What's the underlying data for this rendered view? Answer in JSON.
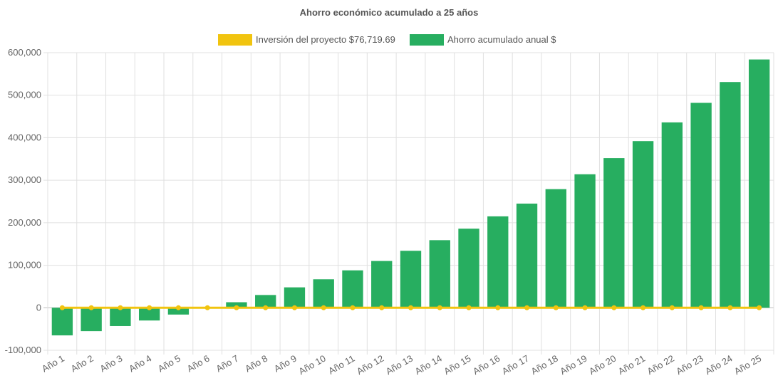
{
  "chart_data": {
    "type": "bar",
    "title": "Ahorro económico acumulado a 25 años",
    "categories": [
      "Año 1",
      "Año 2",
      "Año 3",
      "Año 4",
      "Año 5",
      "Año 6",
      "Año 7",
      "Año 8",
      "Año 9",
      "Año 10",
      "Año 11",
      "Año 12",
      "Año 13",
      "Año 14",
      "Año 15",
      "Año 16",
      "Año 17",
      "Año 18",
      "Año 19",
      "Año 20",
      "Año 21",
      "Año 22",
      "Año 23",
      "Año 24",
      "Año 25"
    ],
    "series": [
      {
        "name": "Inversión del proyecto $76,719.69",
        "type": "line",
        "color": "#f1c40f",
        "values": [
          0,
          0,
          0,
          0,
          0,
          0,
          0,
          0,
          0,
          0,
          0,
          0,
          0,
          0,
          0,
          0,
          0,
          0,
          0,
          0,
          0,
          0,
          0,
          0,
          0
        ]
      },
      {
        "name": "Ahorro acumulado anual $",
        "type": "bar",
        "color": "#27ae60",
        "values": [
          -65000,
          -55000,
          -43000,
          -30000,
          -16000,
          0,
          13000,
          30000,
          48000,
          67000,
          88000,
          110000,
          134000,
          159000,
          186000,
          215000,
          245000,
          279000,
          314000,
          352000,
          392000,
          436000,
          482000,
          531000,
          584000
        ]
      }
    ],
    "yticks": [
      "600,000",
      "500,000",
      "400,000",
      "300,000",
      "200,000",
      "100,000",
      "0",
      "-100,000"
    ],
    "ylim": [
      -100000,
      600000
    ],
    "grid": true,
    "legend_position": "top"
  }
}
